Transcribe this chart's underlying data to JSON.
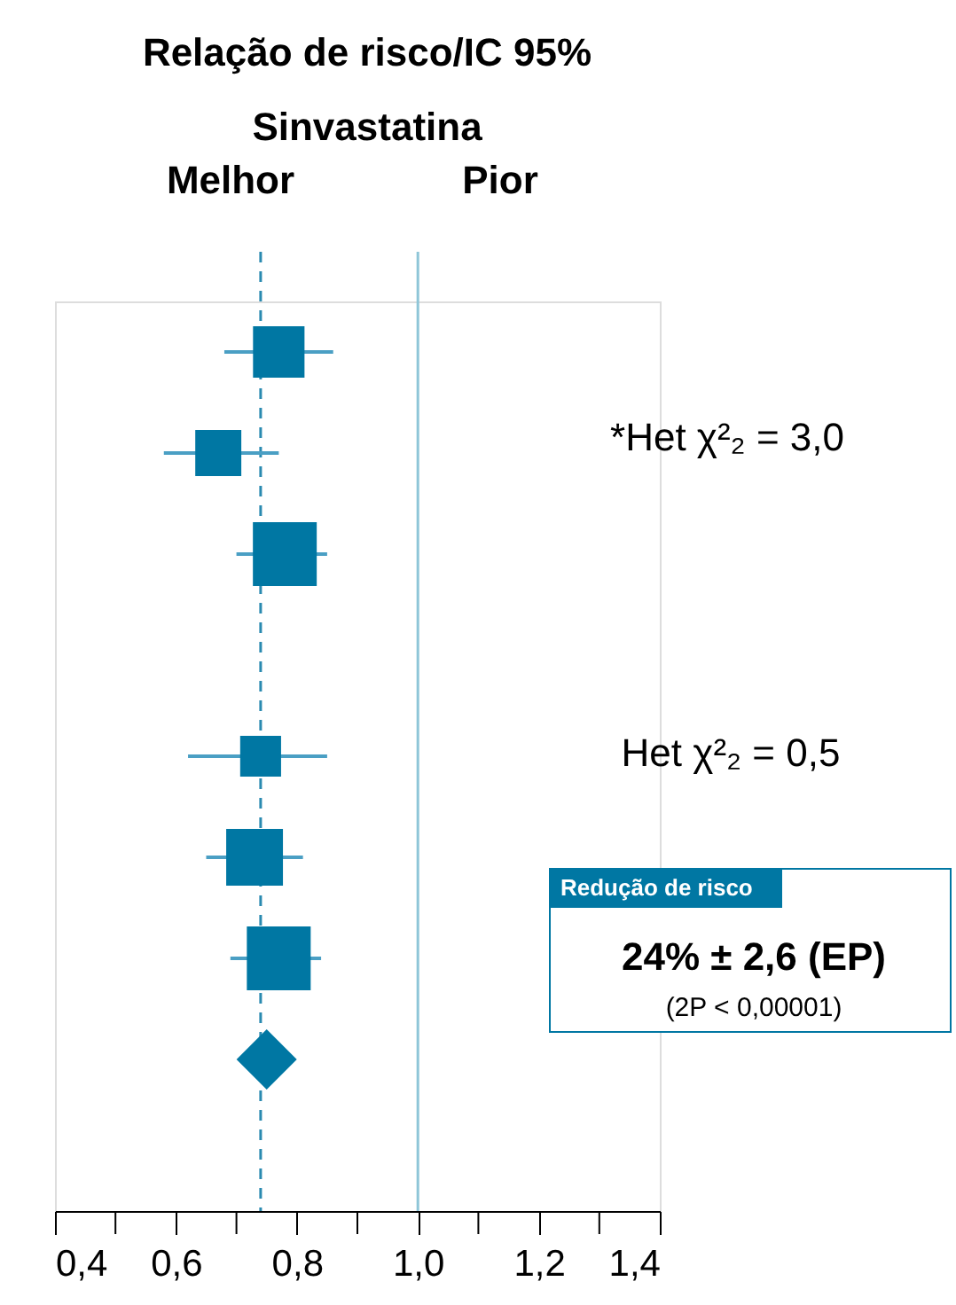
{
  "chart_data": {
    "type": "scatter",
    "orientation": "horizontal",
    "title": "Relação de risco/IC 95%",
    "subtitle": "Sinvastatina",
    "categories": [
      null,
      null,
      null,
      null,
      null,
      null,
      null,
      null,
      null
    ],
    "series": [
      {
        "marker": "square",
        "color": "#0077a3",
        "values": [
          0.77,
          0.67,
          0.78,
          null,
          0.74,
          0.73,
          0.77,
          null,
          null
        ],
        "errors": [
          [
            0.68,
            0.86
          ],
          [
            0.58,
            0.77
          ],
          [
            0.7,
            0.85
          ],
          null,
          [
            0.62,
            0.85
          ],
          [
            0.65,
            0.81
          ],
          [
            0.69,
            0.84
          ],
          null,
          null
        ],
        "sizes": [
          0.65,
          0.52,
          1,
          null,
          0.41,
          0.79,
          1,
          null,
          null
        ]
      },
      {
        "marker": "diamond",
        "color": "#0077a3",
        "values": [
          null,
          null,
          null,
          null,
          null,
          null,
          null,
          0.75,
          null
        ]
      }
    ],
    "xlim": [
      0.4,
      1.4
    ],
    "xticks": [
      {
        "value": 0.4,
        "label": "0,4"
      },
      {
        "value": 0.5,
        "label": null
      },
      {
        "value": 0.6,
        "label": "0,6"
      },
      {
        "value": 0.7,
        "label": null
      },
      {
        "value": 0.8,
        "label": "0,8"
      },
      {
        "value": 0.9,
        "label": null
      },
      {
        "value": 1.0,
        "label": "1,0"
      },
      {
        "value": 1.1,
        "label": null
      },
      {
        "value": 1.2,
        "label": "1,2"
      },
      {
        "value": 1.3,
        "label": null
      },
      {
        "value": 1.4,
        "label": "1,4"
      }
    ],
    "ref_lines": [
      {
        "axis": "x",
        "value": 1.0,
        "color": "#8fc6d8",
        "line_style": "solid"
      },
      {
        "axis": "x",
        "value": 0.74,
        "color": "#2a8ab0",
        "line_style": "dashed"
      }
    ],
    "annotations": [
      "Melhor",
      "Pior",
      "*Het χ²₂ = 3,0",
      "Het χ²₂ = 0,5",
      "Redução de risco",
      "24% ± 2,6 (EP)",
      "(2P < 0,00001)"
    ],
    "grid": false
  }
}
